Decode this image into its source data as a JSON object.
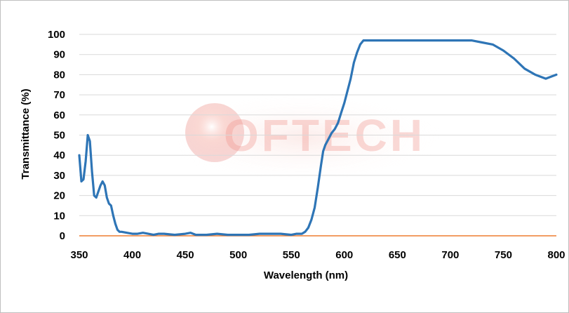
{
  "chart_data": {
    "type": "line",
    "title": "",
    "xlabel": "Wavelength (nm)",
    "ylabel": "Transmittance (%)",
    "xlim": [
      350,
      800
    ],
    "ylim": [
      0,
      100
    ],
    "x_ticks": [
      "350",
      "400",
      "450",
      "500",
      "550",
      "600",
      "650",
      "700",
      "750",
      "800"
    ],
    "y_ticks": [
      "0",
      "10",
      "20",
      "30",
      "40",
      "50",
      "60",
      "70",
      "80",
      "90",
      "100"
    ],
    "grid": "horizontal",
    "legend": "none",
    "colors": {
      "series": "#2e75b6",
      "baseline": "#ed7d31",
      "grid": "#d9d9d9",
      "watermark": "#e23a2a"
    },
    "watermark": {
      "text": "OFTECH"
    },
    "series": [
      {
        "color": "#2e75b6",
        "x": [
          350,
          352,
          354,
          356,
          358,
          360,
          362,
          364,
          366,
          368,
          370,
          372,
          374,
          376,
          378,
          380,
          382,
          384,
          386,
          388,
          390,
          395,
          400,
          405,
          410,
          415,
          420,
          425,
          430,
          440,
          450,
          455,
          460,
          470,
          480,
          490,
          500,
          510,
          520,
          530,
          540,
          550,
          555,
          560,
          563,
          566,
          569,
          572,
          575,
          578,
          580,
          582,
          585,
          588,
          591,
          594,
          597,
          600,
          603,
          606,
          609,
          612,
          615,
          618,
          621,
          625,
          630,
          650,
          700,
          720,
          730,
          740,
          750,
          760,
          770,
          780,
          785,
          790,
          795,
          800
        ],
        "y": [
          40,
          27,
          28,
          37,
          50,
          47,
          32,
          20,
          19,
          22,
          25,
          27,
          25,
          19,
          16,
          15,
          10,
          6,
          3,
          2,
          2,
          1.5,
          1,
          1,
          1.5,
          1,
          0.5,
          1,
          1,
          0.5,
          1,
          1.5,
          0.5,
          0.5,
          1,
          0.5,
          0.5,
          0.5,
          1,
          1,
          1,
          0.5,
          1,
          1,
          2,
          4,
          8,
          14,
          24,
          35,
          42,
          45,
          48,
          51,
          53,
          56,
          61,
          66,
          72,
          78,
          86,
          91,
          95,
          97,
          97,
          97,
          97,
          97,
          97,
          97,
          96,
          95,
          92,
          88,
          83,
          80,
          79,
          78,
          79,
          80
        ]
      }
    ]
  }
}
